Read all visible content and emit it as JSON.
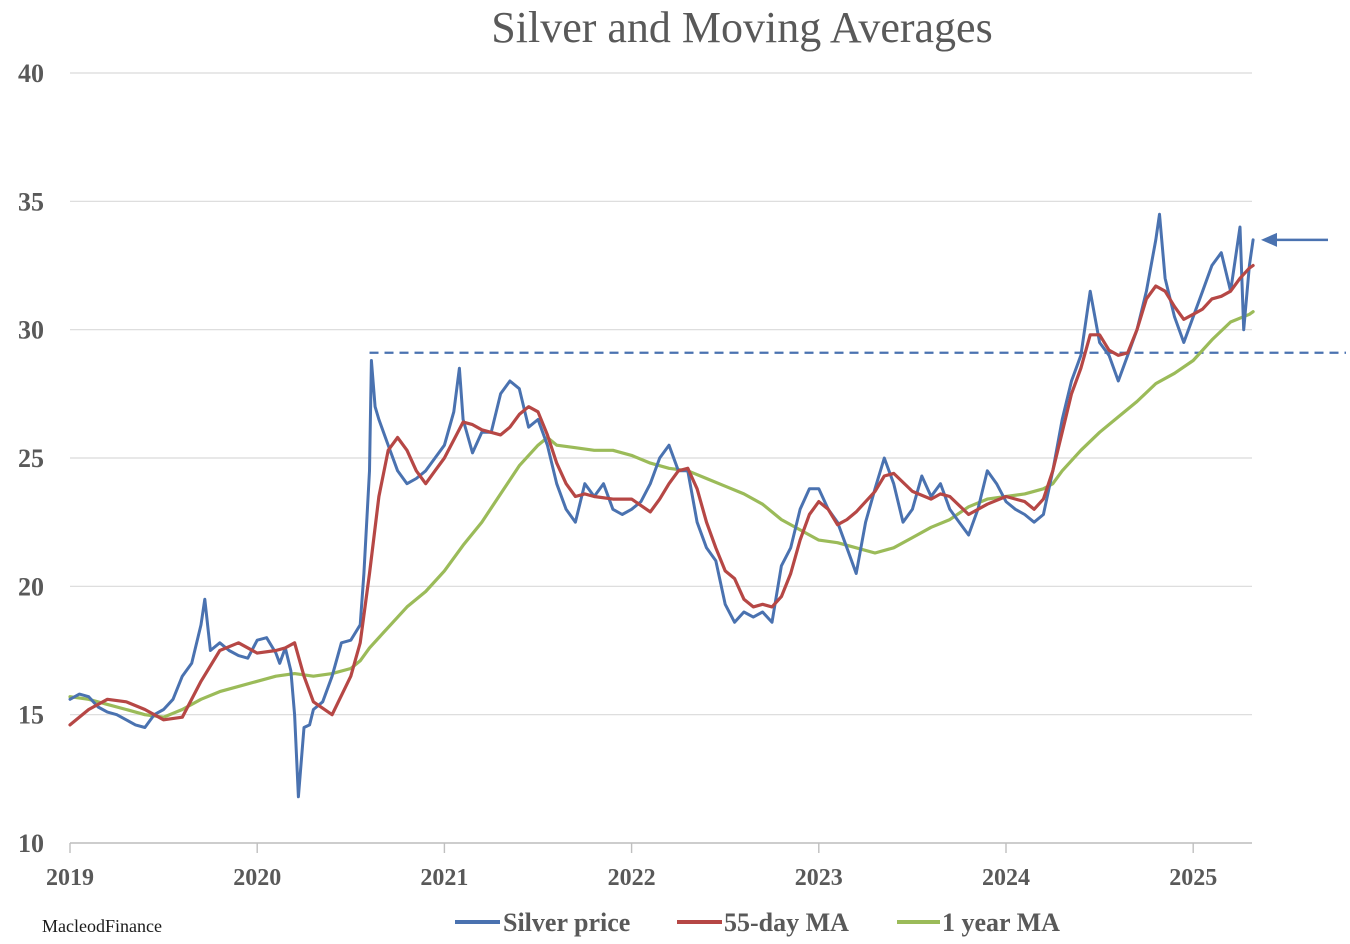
{
  "chart_data": {
    "type": "line",
    "title": "Silver and Moving Averages",
    "xlabel": "",
    "ylabel": "",
    "ylim": [
      10,
      40
    ],
    "xlim": [
      2019.0,
      2025.33
    ],
    "yticks": [
      10,
      15,
      20,
      25,
      30,
      35,
      40
    ],
    "xticks": [
      "2019",
      "2020",
      "2021",
      "2022",
      "2023",
      "2024",
      "2025"
    ],
    "grid": "horizontal",
    "legend_position": "bottom",
    "credit": "MacleodFinance",
    "reference_line": {
      "y": 29.1,
      "x_start": 2020.6,
      "style": "dashed",
      "color": "#4a72b0"
    },
    "arrow_marker": {
      "y": 33.5,
      "direction": "left",
      "color": "#4a72b0"
    },
    "series": [
      {
        "name": "Silver price",
        "color": "#4a72b0",
        "x": [
          2019.0,
          2019.05,
          2019.1,
          2019.15,
          2019.2,
          2019.25,
          2019.3,
          2019.35,
          2019.4,
          2019.45,
          2019.5,
          2019.55,
          2019.6,
          2019.65,
          2019.7,
          2019.72,
          2019.75,
          2019.8,
          2019.85,
          2019.9,
          2019.95,
          2020.0,
          2020.05,
          2020.1,
          2020.12,
          2020.15,
          2020.18,
          2020.2,
          2020.22,
          2020.25,
          2020.28,
          2020.3,
          2020.35,
          2020.4,
          2020.45,
          2020.5,
          2020.55,
          2020.57,
          2020.6,
          2020.61,
          2020.63,
          2020.65,
          2020.7,
          2020.75,
          2020.8,
          2020.85,
          2020.9,
          2020.95,
          2021.0,
          2021.05,
          2021.08,
          2021.1,
          2021.15,
          2021.2,
          2021.25,
          2021.3,
          2021.35,
          2021.4,
          2021.45,
          2021.5,
          2021.55,
          2021.6,
          2021.65,
          2021.7,
          2021.75,
          2021.8,
          2021.85,
          2021.9,
          2021.95,
          2022.0,
          2022.05,
          2022.1,
          2022.15,
          2022.2,
          2022.25,
          2022.3,
          2022.35,
          2022.4,
          2022.45,
          2022.5,
          2022.55,
          2022.6,
          2022.65,
          2022.7,
          2022.75,
          2022.8,
          2022.85,
          2022.9,
          2022.95,
          2023.0,
          2023.05,
          2023.1,
          2023.15,
          2023.2,
          2023.25,
          2023.3,
          2023.35,
          2023.4,
          2023.45,
          2023.5,
          2023.55,
          2023.6,
          2023.65,
          2023.7,
          2023.75,
          2023.8,
          2023.85,
          2023.9,
          2023.95,
          2024.0,
          2024.05,
          2024.1,
          2024.15,
          2024.2,
          2024.25,
          2024.3,
          2024.35,
          2024.4,
          2024.45,
          2024.5,
          2024.55,
          2024.6,
          2024.65,
          2024.7,
          2024.75,
          2024.8,
          2024.82,
          2024.85,
          2024.9,
          2024.95,
          2025.0,
          2025.05,
          2025.1,
          2025.15,
          2025.2,
          2025.25,
          2025.27,
          2025.3,
          2025.32
        ],
        "values": [
          15.6,
          15.8,
          15.7,
          15.3,
          15.1,
          15.0,
          14.8,
          14.6,
          14.5,
          15.0,
          15.2,
          15.6,
          16.5,
          17.0,
          18.5,
          19.5,
          17.5,
          17.8,
          17.5,
          17.3,
          17.2,
          17.9,
          18.0,
          17.4,
          17.0,
          17.6,
          16.7,
          15.0,
          11.8,
          14.5,
          14.6,
          15.2,
          15.5,
          16.5,
          17.8,
          17.9,
          18.5,
          20.5,
          24.5,
          28.8,
          27.0,
          26.5,
          25.5,
          24.5,
          24.0,
          24.2,
          24.5,
          25.0,
          25.5,
          26.8,
          28.5,
          26.5,
          25.2,
          26.0,
          26.0,
          27.5,
          28.0,
          27.7,
          26.2,
          26.5,
          25.5,
          24.0,
          23.0,
          22.5,
          24.0,
          23.5,
          24.0,
          23.0,
          22.8,
          23.0,
          23.3,
          24.0,
          25.0,
          25.5,
          24.5,
          24.5,
          22.5,
          21.5,
          21.0,
          19.3,
          18.6,
          19.0,
          18.8,
          19.0,
          18.6,
          20.8,
          21.5,
          23.0,
          23.8,
          23.8,
          23.0,
          22.5,
          21.5,
          20.5,
          22.5,
          23.8,
          25.0,
          24.0,
          22.5,
          23.0,
          24.3,
          23.5,
          24.0,
          23.0,
          22.5,
          22.0,
          23.0,
          24.5,
          24.0,
          23.3,
          23.0,
          22.8,
          22.5,
          22.8,
          24.5,
          26.5,
          28.0,
          29.0,
          31.5,
          29.5,
          29.0,
          28.0,
          29.0,
          30.0,
          31.5,
          33.5,
          34.5,
          32.0,
          30.5,
          29.5,
          30.5,
          31.5,
          32.5,
          33.0,
          31.5,
          34.0,
          30.0,
          32.5,
          33.5
        ]
      },
      {
        "name": "55-day MA",
        "color": "#b64745",
        "x": [
          2019.0,
          2019.1,
          2019.2,
          2019.3,
          2019.4,
          2019.5,
          2019.6,
          2019.7,
          2019.8,
          2019.9,
          2020.0,
          2020.1,
          2020.15,
          2020.2,
          2020.25,
          2020.3,
          2020.4,
          2020.5,
          2020.55,
          2020.6,
          2020.65,
          2020.7,
          2020.75,
          2020.8,
          2020.85,
          2020.9,
          2020.95,
          2021.0,
          2021.1,
          2021.15,
          2021.2,
          2021.3,
          2021.35,
          2021.4,
          2021.45,
          2021.5,
          2021.55,
          2021.6,
          2021.65,
          2021.7,
          2021.75,
          2021.8,
          2021.9,
          2022.0,
          2022.1,
          2022.15,
          2022.2,
          2022.25,
          2022.3,
          2022.35,
          2022.4,
          2022.45,
          2022.5,
          2022.55,
          2022.6,
          2022.65,
          2022.7,
          2022.75,
          2022.8,
          2022.85,
          2022.9,
          2022.95,
          2023.0,
          2023.05,
          2023.1,
          2023.15,
          2023.2,
          2023.3,
          2023.35,
          2023.4,
          2023.5,
          2023.6,
          2023.65,
          2023.7,
          2023.8,
          2023.9,
          2024.0,
          2024.1,
          2024.15,
          2024.2,
          2024.25,
          2024.3,
          2024.35,
          2024.4,
          2024.45,
          2024.5,
          2024.55,
          2024.6,
          2024.65,
          2024.7,
          2024.75,
          2024.8,
          2024.85,
          2024.9,
          2024.95,
          2025.0,
          2025.05,
          2025.1,
          2025.15,
          2025.2,
          2025.25,
          2025.3,
          2025.32
        ],
        "values": [
          14.6,
          15.2,
          15.6,
          15.5,
          15.2,
          14.8,
          14.9,
          16.3,
          17.5,
          17.8,
          17.4,
          17.5,
          17.6,
          17.8,
          16.5,
          15.5,
          15.0,
          16.5,
          17.8,
          20.5,
          23.5,
          25.3,
          25.8,
          25.3,
          24.5,
          24.0,
          24.5,
          25.0,
          26.4,
          26.3,
          26.1,
          25.9,
          26.2,
          26.7,
          27.0,
          26.8,
          25.9,
          24.8,
          24.0,
          23.5,
          23.6,
          23.5,
          23.4,
          23.4,
          22.9,
          23.4,
          24.0,
          24.5,
          24.6,
          23.8,
          22.5,
          21.5,
          20.6,
          20.3,
          19.5,
          19.2,
          19.3,
          19.2,
          19.6,
          20.5,
          21.8,
          22.8,
          23.3,
          23.0,
          22.4,
          22.6,
          22.9,
          23.7,
          24.3,
          24.4,
          23.7,
          23.4,
          23.6,
          23.5,
          22.8,
          23.2,
          23.5,
          23.3,
          23.0,
          23.4,
          24.5,
          26.0,
          27.5,
          28.5,
          29.8,
          29.8,
          29.2,
          29.0,
          29.1,
          30.0,
          31.2,
          31.7,
          31.5,
          30.9,
          30.4,
          30.6,
          30.8,
          31.2,
          31.3,
          31.5,
          32.0,
          32.4,
          32.5
        ]
      },
      {
        "name": "1 year MA",
        "color": "#9bbb59",
        "x": [
          2019.0,
          2019.1,
          2019.2,
          2019.3,
          2019.4,
          2019.5,
          2019.6,
          2019.7,
          2019.8,
          2019.9,
          2020.0,
          2020.1,
          2020.2,
          2020.3,
          2020.4,
          2020.5,
          2020.55,
          2020.6,
          2020.7,
          2020.8,
          2020.9,
          2021.0,
          2021.1,
          2021.2,
          2021.3,
          2021.4,
          2021.5,
          2021.55,
          2021.6,
          2021.7,
          2021.8,
          2021.9,
          2022.0,
          2022.1,
          2022.2,
          2022.3,
          2022.4,
          2022.5,
          2022.6,
          2022.7,
          2022.8,
          2022.9,
          2023.0,
          2023.1,
          2023.2,
          2023.3,
          2023.4,
          2023.5,
          2023.6,
          2023.7,
          2023.8,
          2023.9,
          2024.0,
          2024.1,
          2024.2,
          2024.25,
          2024.3,
          2024.4,
          2024.5,
          2024.6,
          2024.7,
          2024.8,
          2024.9,
          2025.0,
          2025.1,
          2025.2,
          2025.3,
          2025.32
        ],
        "values": [
          15.7,
          15.6,
          15.4,
          15.2,
          15.0,
          14.9,
          15.2,
          15.6,
          15.9,
          16.1,
          16.3,
          16.5,
          16.6,
          16.5,
          16.6,
          16.8,
          17.1,
          17.6,
          18.4,
          19.2,
          19.8,
          20.6,
          21.6,
          22.5,
          23.6,
          24.7,
          25.5,
          25.8,
          25.5,
          25.4,
          25.3,
          25.3,
          25.1,
          24.8,
          24.6,
          24.5,
          24.2,
          23.9,
          23.6,
          23.2,
          22.6,
          22.2,
          21.8,
          21.7,
          21.5,
          21.3,
          21.5,
          21.9,
          22.3,
          22.6,
          23.1,
          23.4,
          23.5,
          23.6,
          23.8,
          24.0,
          24.5,
          25.3,
          26.0,
          26.6,
          27.2,
          27.9,
          28.3,
          28.8,
          29.6,
          30.3,
          30.6,
          30.7
        ]
      }
    ]
  }
}
